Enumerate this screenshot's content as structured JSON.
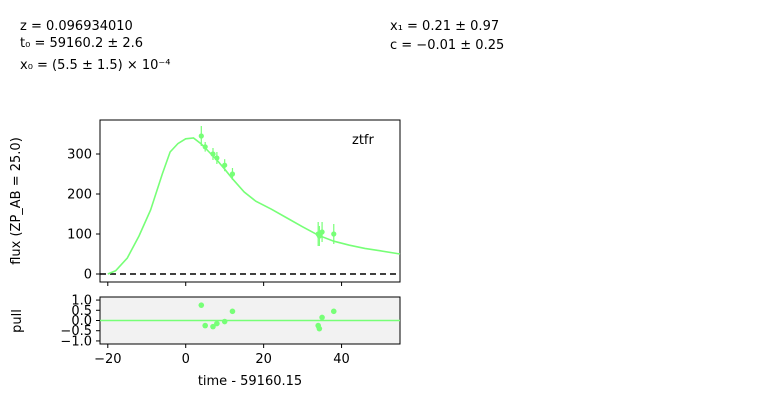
{
  "params": {
    "z": "z = 0.096934010",
    "t0": "t₀ = 59160.2 ± 2.6",
    "x0": "x₀ = (5.5 ± 1.5) × 10⁻⁴",
    "x1": "x₁ = 0.21 ± 0.97",
    "c": "c = −0.01 ± 0.25"
  },
  "chart_data": [
    {
      "type": "line",
      "band_label": "ztfr",
      "ylabel": "flux (ZP_AB = 25.0)",
      "xlim": [
        -22,
        55
      ],
      "ylim": [
        -20,
        385
      ],
      "xticks": [
        -20,
        0,
        20,
        40
      ],
      "yticks": [
        0,
        100,
        200,
        300
      ],
      "ytick_labels": [
        "0",
        "100",
        "200",
        "300"
      ],
      "model_color": "#77ff77",
      "zero_line": 0,
      "model_curve": {
        "x": [
          -20,
          -18,
          -15,
          -12,
          -9,
          -6,
          -4,
          -2,
          0,
          2,
          4,
          6,
          8,
          10,
          12,
          15,
          18,
          22,
          26,
          30,
          34,
          38,
          42,
          46,
          50,
          55
        ],
        "y": [
          0,
          8,
          40,
          95,
          160,
          250,
          305,
          326,
          338,
          340,
          325,
          305,
          285,
          262,
          238,
          205,
          182,
          162,
          140,
          118,
          97,
          82,
          72,
          64,
          58,
          50
        ]
      },
      "points": {
        "x": [
          4.0,
          5.0,
          7.0,
          8.0,
          10.0,
          12.0,
          34.0,
          34.3,
          35.0,
          38.0
        ],
        "y": [
          345,
          318,
          300,
          290,
          272,
          250,
          100,
          95,
          105,
          100
        ],
        "yerr": [
          25,
          12,
          15,
          15,
          15,
          15,
          30,
          25,
          25,
          25
        ]
      }
    },
    {
      "type": "scatter",
      "ylabel": "pull",
      "xlabel": "time - 59160.15",
      "xlim": [
        -22,
        55
      ],
      "ylim": [
        -1.15,
        1.15
      ],
      "xticks": [
        -20,
        0,
        20,
        40
      ],
      "xtick_labels": [
        "−20",
        "0",
        "20",
        "40"
      ],
      "yticks": [
        1.0,
        0.5,
        0.0,
        -0.5,
        -1.0
      ],
      "ytick_labels": [
        "1.0",
        "0.5",
        "0.0",
        "−0.5",
        "−1.0"
      ],
      "zero_line": 0,
      "points": {
        "x": [
          4.0,
          5.0,
          7.0,
          8.0,
          10.0,
          12.0,
          34.0,
          34.3,
          35.0,
          38.0
        ],
        "y": [
          0.75,
          -0.25,
          -0.3,
          -0.15,
          -0.05,
          0.45,
          -0.25,
          -0.4,
          0.15,
          0.45
        ]
      }
    }
  ]
}
